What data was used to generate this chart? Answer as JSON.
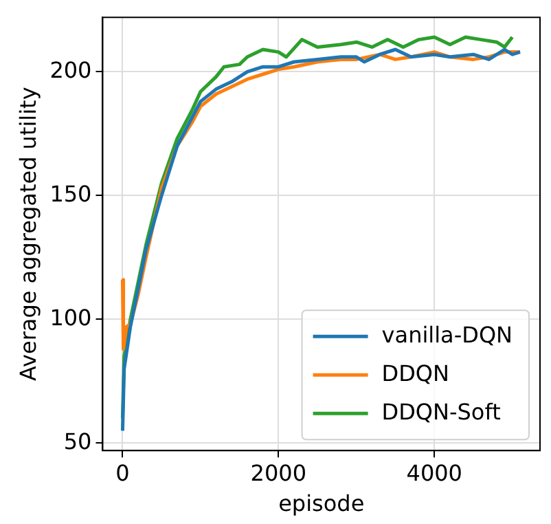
{
  "chart_data": {
    "type": "line",
    "xlabel": "episode",
    "ylabel": "Average aggregated utility",
    "xlim": [
      -255,
      5355
    ],
    "xticks": [
      0,
      2000,
      4000
    ],
    "ylim": [
      47,
      222
    ],
    "yticks": [
      50,
      100,
      150,
      200
    ],
    "grid": true,
    "legend": "bottom right",
    "marker": "none",
    "line_style": "solid",
    "series": [
      {
        "name": "vanilla-DQN",
        "color": "#1f77b4",
        "x": [
          0,
          20,
          100,
          300,
          500,
          700,
          900,
          1000,
          1200,
          1400,
          1600,
          1800,
          2000,
          2200,
          2500,
          2800,
          3000,
          3100,
          3300,
          3500,
          3700,
          4000,
          4200,
          4500,
          4700,
          4900,
          5000,
          5100
        ],
        "values": [
          55,
          80,
          97,
          128,
          150,
          170,
          182,
          188,
          193,
          196,
          200,
          202,
          202,
          204,
          205,
          206,
          206,
          204,
          207,
          209,
          206,
          207,
          206,
          207,
          205,
          209,
          207,
          208
        ]
      },
      {
        "name": "DDQN",
        "color": "#ff7f0e",
        "x": [
          0,
          10,
          50,
          100,
          200,
          300,
          500,
          700,
          900,
          1000,
          1200,
          1400,
          1600,
          1800,
          2000,
          2200,
          2500,
          2800,
          3000,
          3300,
          3500,
          3700,
          4000,
          4200,
          4500,
          4700,
          4900,
          5100
        ],
        "values": [
          116,
          88,
          97,
          98,
          110,
          125,
          153,
          170,
          180,
          186,
          191,
          194,
          197,
          199,
          201,
          202,
          204,
          205,
          205,
          207,
          205,
          206,
          208,
          206,
          205,
          206,
          208,
          208
        ]
      },
      {
        "name": "DDQN-Soft",
        "color": "#2ca02c",
        "x": [
          0,
          20,
          100,
          300,
          500,
          700,
          900,
          1000,
          1200,
          1300,
          1500,
          1600,
          1800,
          2000,
          2100,
          2300,
          2500,
          2800,
          3000,
          3200,
          3400,
          3600,
          3800,
          4000,
          4200,
          4400,
          4600,
          4800,
          4900,
          5000
        ],
        "values": [
          60,
          85,
          100,
          130,
          155,
          173,
          185,
          192,
          198,
          202,
          203,
          206,
          209,
          208,
          206,
          213,
          210,
          211,
          212,
          210,
          213,
          210,
          213,
          214,
          211,
          214,
          213,
          212,
          210,
          214
        ]
      }
    ]
  }
}
